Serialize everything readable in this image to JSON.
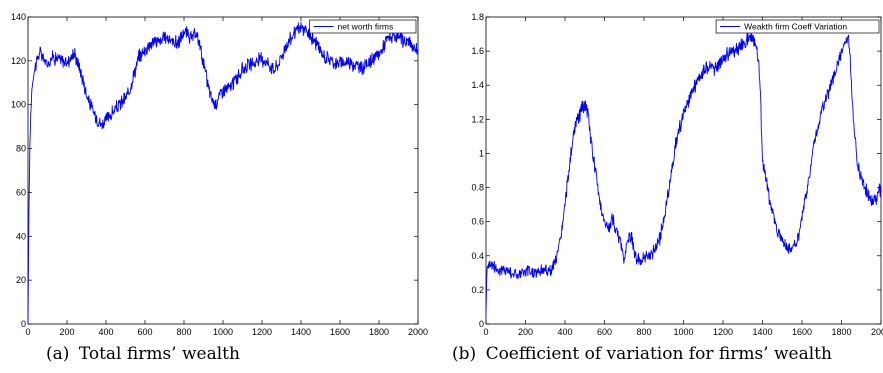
{
  "chart_data": [
    {
      "type": "line",
      "caption_label": "(a)",
      "caption_text": "Total firms’ wealth",
      "xlim": [
        0,
        2000
      ],
      "ylim": [
        0,
        140
      ],
      "x_ticks": [
        0,
        200,
        400,
        600,
        800,
        1000,
        1200,
        1400,
        1600,
        1800,
        2000
      ],
      "y_ticks": [
        0,
        20,
        40,
        60,
        80,
        100,
        120,
        140
      ],
      "x_tick_labels": [
        "0",
        "200",
        "400",
        "600",
        "800",
        "1000",
        "1200",
        "1400",
        "1600",
        "1800",
        "2000"
      ],
      "y_tick_labels": [
        "0",
        "20",
        "40",
        "60",
        "80",
        "100",
        "120",
        "140"
      ],
      "legend": "top-right",
      "grid": false,
      "series": [
        {
          "name": "net worth firms",
          "color": "#0000ff",
          "x": [
            0,
            5,
            12,
            20,
            30,
            45,
            60,
            80,
            100,
            120,
            150,
            180,
            200,
            220,
            240,
            260,
            280,
            300,
            320,
            340,
            360,
            375,
            390,
            410,
            430,
            450,
            470,
            490,
            510,
            530,
            550,
            570,
            590,
            610,
            630,
            650,
            680,
            710,
            740,
            770,
            800,
            820,
            840,
            860,
            880,
            900,
            920,
            940,
            960,
            980,
            1000,
            1020,
            1040,
            1060,
            1080,
            1100,
            1120,
            1140,
            1160,
            1180,
            1200,
            1220,
            1240,
            1260,
            1280,
            1300,
            1320,
            1340,
            1360,
            1380,
            1400,
            1420,
            1440,
            1460,
            1480,
            1500,
            1520,
            1540,
            1560,
            1580,
            1600,
            1620,
            1640,
            1660,
            1680,
            1700,
            1720,
            1740,
            1760,
            1780,
            1800,
            1820,
            1840,
            1860,
            1880,
            1900,
            1920,
            1940,
            1960,
            1980,
            2000
          ],
          "y": [
            0,
            55,
            90,
            108,
            115,
            120,
            124,
            121,
            118,
            122,
            121,
            120,
            119,
            122,
            123,
            118,
            112,
            105,
            100,
            96,
            93,
            91,
            92,
            94,
            96,
            98,
            100,
            102,
            104,
            110,
            116,
            122,
            124,
            126,
            128,
            129,
            129,
            131,
            129,
            128,
            133,
            132,
            130,
            132,
            128,
            119,
            110,
            103,
            100,
            104,
            107,
            107,
            108,
            111,
            113,
            116,
            118,
            118,
            119,
            120,
            121,
            120,
            118,
            116,
            118,
            122,
            126,
            129,
            132,
            134,
            135,
            134,
            132,
            130,
            128,
            124,
            122,
            121,
            120,
            119,
            119,
            119,
            120,
            119,
            118,
            117,
            117,
            119,
            120,
            121,
            123,
            126,
            130,
            131,
            130,
            131,
            129,
            129,
            128,
            126,
            124
          ]
        }
      ]
    },
    {
      "type": "line",
      "caption_label": "(b)",
      "caption_text": "Coefficient of variation for firms’ wealth",
      "xlim": [
        0,
        2000
      ],
      "ylim": [
        0,
        1.8
      ],
      "x_ticks": [
        0,
        200,
        400,
        600,
        800,
        1000,
        1200,
        1400,
        1600,
        1800,
        2000
      ],
      "y_ticks": [
        0,
        0.2,
        0.4,
        0.6,
        0.8,
        1,
        1.2,
        1.4,
        1.6,
        1.8
      ],
      "x_tick_labels": [
        "0",
        "200",
        "400",
        "600",
        "800",
        "1000",
        "1200",
        "1400",
        "1600",
        "1800",
        "2000"
      ],
      "y_tick_labels": [
        "0",
        "0.2",
        "0.4",
        "0.6",
        "0.8",
        "1",
        "1.2",
        "1.4",
        "1.6",
        "1.8"
      ],
      "legend": "top-right",
      "grid": false,
      "series": [
        {
          "name": "Weakth firm Coeff Variation",
          "color": "#0000ff",
          "x": [
            0,
            5,
            15,
            40,
            70,
            100,
            130,
            160,
            190,
            220,
            250,
            280,
            310,
            330,
            350,
            370,
            390,
            410,
            430,
            450,
            470,
            490,
            505,
            520,
            540,
            560,
            580,
            600,
            620,
            640,
            660,
            680,
            700,
            720,
            740,
            760,
            780,
            800,
            820,
            840,
            860,
            880,
            900,
            920,
            940,
            960,
            980,
            1000,
            1020,
            1040,
            1060,
            1080,
            1100,
            1120,
            1140,
            1160,
            1180,
            1200,
            1220,
            1240,
            1260,
            1280,
            1300,
            1320,
            1340,
            1360,
            1380,
            1390,
            1400,
            1420,
            1440,
            1460,
            1480,
            1500,
            1520,
            1540,
            1560,
            1580,
            1600,
            1620,
            1640,
            1660,
            1680,
            1700,
            1720,
            1740,
            1760,
            1780,
            1800,
            1820,
            1840,
            1850,
            1860,
            1880,
            1900,
            1920,
            1940,
            1960,
            1980,
            2000
          ],
          "y": [
            0.06,
            0.33,
            0.36,
            0.34,
            0.31,
            0.32,
            0.3,
            0.29,
            0.3,
            0.31,
            0.3,
            0.32,
            0.32,
            0.31,
            0.36,
            0.45,
            0.6,
            0.8,
            1.0,
            1.15,
            1.22,
            1.27,
            1.29,
            1.2,
            1.0,
            0.85,
            0.7,
            0.6,
            0.55,
            0.62,
            0.55,
            0.48,
            0.38,
            0.52,
            0.5,
            0.38,
            0.37,
            0.38,
            0.39,
            0.42,
            0.45,
            0.5,
            0.6,
            0.75,
            0.9,
            1.05,
            1.15,
            1.22,
            1.28,
            1.35,
            1.4,
            1.45,
            1.48,
            1.5,
            1.52,
            1.49,
            1.53,
            1.56,
            1.58,
            1.6,
            1.6,
            1.62,
            1.64,
            1.66,
            1.7,
            1.66,
            1.55,
            1.32,
            0.95,
            0.85,
            0.7,
            0.6,
            0.55,
            0.5,
            0.46,
            0.44,
            0.45,
            0.5,
            0.62,
            0.75,
            0.9,
            1.05,
            1.15,
            1.25,
            1.32,
            1.38,
            1.45,
            1.52,
            1.6,
            1.68,
            1.65,
            1.4,
            1.2,
            0.95,
            0.85,
            0.8,
            0.75,
            0.72,
            0.75,
            0.8
          ]
        }
      ]
    }
  ]
}
